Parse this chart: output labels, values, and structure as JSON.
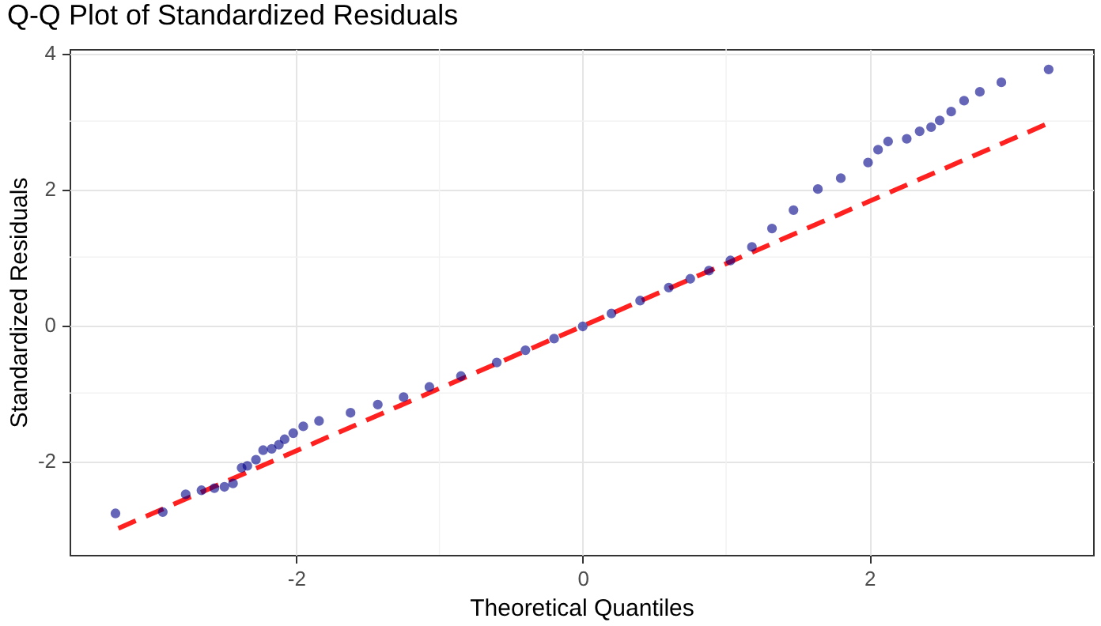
{
  "chart_data": {
    "type": "scatter",
    "title": "Q-Q Plot of Standardized Residuals",
    "xlabel": "Theoretical Quantiles",
    "ylabel": "Standardized Residuals",
    "xlim": [
      -3.58,
      3.56
    ],
    "ylim": [
      -3.38,
      4.06
    ],
    "xticks": [
      -2,
      0,
      2
    ],
    "yticks": [
      -2,
      0,
      2,
      4
    ],
    "grid": true,
    "series": [
      {
        "color": "#00008b",
        "marker": "circle",
        "x": [
          -3.26,
          -2.93,
          -2.77,
          -2.66,
          -2.57,
          -2.5,
          -2.44,
          -2.38,
          -2.34,
          -2.28,
          -2.23,
          -2.17,
          -2.12,
          -2.08,
          -2.02,
          -1.95,
          -1.84,
          -1.62,
          -1.43,
          -1.25,
          -1.07,
          -0.85,
          -0.6,
          -0.4,
          -0.2,
          0.0,
          0.2,
          0.4,
          0.6,
          0.75,
          0.88,
          1.03,
          1.18,
          1.32,
          1.47,
          1.64,
          1.8,
          1.99,
          2.06,
          2.13,
          2.26,
          2.35,
          2.43,
          2.49,
          2.57,
          2.66,
          2.77,
          2.92,
          3.25
        ],
        "values": [
          -2.77,
          -2.75,
          -2.49,
          -2.43,
          -2.4,
          -2.38,
          -2.33,
          -2.1,
          -2.07,
          -1.98,
          -1.84,
          -1.82,
          -1.76,
          -1.68,
          -1.59,
          -1.49,
          -1.41,
          -1.29,
          -1.17,
          -1.06,
          -0.91,
          -0.75,
          -0.55,
          -0.37,
          -0.2,
          -0.02,
          0.17,
          0.36,
          0.55,
          0.68,
          0.8,
          0.95,
          1.15,
          1.42,
          1.69,
          2.0,
          2.16,
          2.39,
          2.58,
          2.7,
          2.74,
          2.85,
          2.91,
          3.01,
          3.14,
          3.3,
          3.43,
          3.57,
          3.76
        ]
      },
      {
        "type": "line",
        "color": "#ff2020",
        "line_style": "dashed",
        "x": [
          -3.24,
          3.25
        ],
        "values": [
          -2.99,
          2.97
        ]
      }
    ]
  }
}
